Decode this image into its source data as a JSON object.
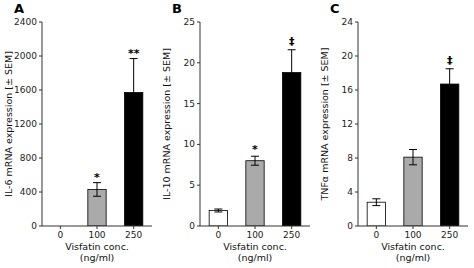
{
  "chart_data": [
    {
      "type": "bar",
      "title": "A",
      "x_label": "Visfatin conc.\n(ng/ml)",
      "y_label": "IL-6 mRNA expression [± SEM]",
      "categories": [
        "0",
        "100",
        "250"
      ],
      "values": [
        0,
        430,
        1570
      ],
      "errors": [
        0,
        80,
        400
      ],
      "colors": [
        "white",
        "#aaaaaa",
        "black"
      ],
      "ylim": [
        0,
        2400
      ],
      "yticks": [
        0,
        400,
        800,
        1200,
        1600,
        2000,
        2400
      ],
      "grid": false,
      "annotations": [
        {
          "text": "*",
          "x": "100",
          "y": 515
        },
        {
          "text": "**",
          "x": "250",
          "y": 1980
        }
      ]
    },
    {
      "type": "bar",
      "title": "B",
      "x_label": "Visfatin conc.\n(ng/ml)",
      "y_label": "IL-10 mRNA expression [± SEM]",
      "categories": [
        "0",
        "100",
        "250"
      ],
      "values": [
        1.9,
        8.0,
        18.8
      ],
      "errors": [
        0.18,
        0.55,
        2.8
      ],
      "colors": [
        "white",
        "#aaaaaa",
        "black"
      ],
      "ylim": [
        0,
        25
      ],
      "yticks": [
        0,
        5,
        10,
        15,
        20,
        25
      ],
      "grid": false,
      "annotations": [
        {
          "text": "*",
          "x": "100",
          "y": 8.8
        },
        {
          "text": "‡",
          "x": "250",
          "y": 22.0
        }
      ]
    },
    {
      "type": "bar",
      "title": "C",
      "x_label": "Visfatin conc.\n(ng/ml)",
      "y_label": "TNFα mRNA expression [± SEM]",
      "categories": [
        "0",
        "100",
        "250"
      ],
      "values": [
        2.8,
        8.1,
        16.7
      ],
      "errors": [
        0.4,
        0.9,
        1.8
      ],
      "colors": [
        "white",
        "#aaaaaa",
        "black"
      ],
      "ylim": [
        0,
        24
      ],
      "yticks": [
        0,
        4,
        8,
        12,
        16,
        20,
        24
      ],
      "grid": false,
      "annotations": [
        {
          "text": "‡",
          "x": "250",
          "y": 19.0
        }
      ]
    }
  ]
}
